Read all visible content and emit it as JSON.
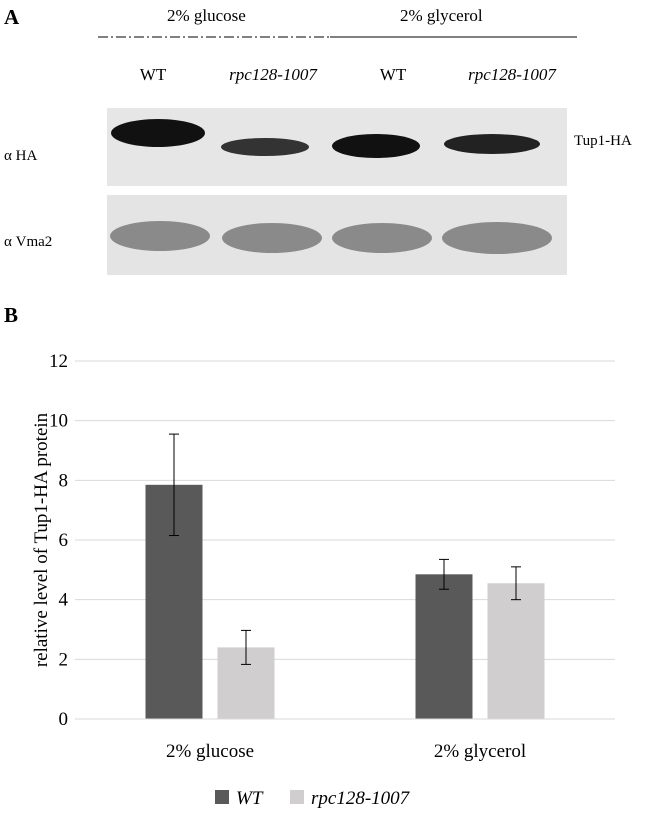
{
  "panel_a": {
    "label": "A",
    "conditions": [
      "2% glucose",
      "2% glycerol"
    ],
    "lanes": [
      "WT",
      "rpc128-1007",
      "WT",
      "rpc128-1007"
    ],
    "antibodies": [
      "α HA",
      "α Vma2"
    ],
    "band_label": "Tup1-HA"
  },
  "panel_b": {
    "label": "B"
  },
  "chart_data": {
    "type": "bar",
    "ylabel": "relative level of Tup1-HA protein",
    "categories": [
      "2% glucose",
      "2% glycerol"
    ],
    "series": [
      {
        "name": "WT",
        "color": "#595959",
        "values": [
          7.85,
          4.85
        ],
        "errors": [
          1.7,
          0.5
        ]
      },
      {
        "name": "rpc128-1007",
        "color": "#d0cece",
        "values": [
          2.4,
          4.55
        ],
        "errors": [
          0.57,
          0.55
        ]
      }
    ],
    "ylim": [
      0,
      12
    ],
    "yticks": [
      0,
      2,
      4,
      6,
      8,
      10,
      12
    ],
    "grid": true,
    "legend": "bottom"
  }
}
